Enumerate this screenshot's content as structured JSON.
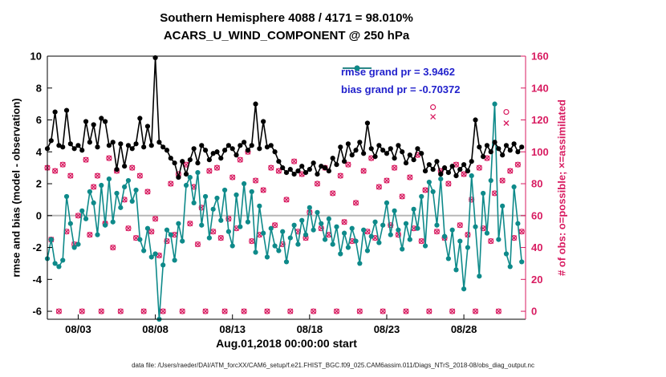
{
  "figure": {
    "title_line1": "Southern Hemisphere 4088 / 4171 = 98.010%",
    "title_line2": "ACARS_U_WIND_COMPONENT @ 250 hPa",
    "xlabel": "Aug.01,2018 00:00:00 start",
    "ylabel_left": "rmse and bias (model - observation)",
    "ylabel_right": "# of obs: o=possible; ×=assimilated",
    "caption": "data file: /Users/raeder/DAI/ATM_forcXX/CAM6_setup/f.e21.FHIST_BGC.f09_025.CAM6assim.011/Diags_NTrS_2018-08/obs_diag_output.nc"
  },
  "legend": {
    "rmse_label": "rmse grand pr = 3.9462",
    "bias_label": "bias grand pr = -0.70372",
    "text_color": "#2222cc"
  },
  "colors": {
    "rmse": "#000000",
    "bias": "#0e8a8a",
    "obs": "#d81b60",
    "zero_line": "#b8b8b8"
  },
  "chart_data": {
    "type": "line",
    "title": "Southern Hemisphere 4088 / 4171 = 98.010%  ACARS_U_WIND_COMPONENT @ 250 hPa",
    "x": {
      "start_days": 0,
      "step_days": 0.25,
      "count": 124
    },
    "x_axis": {
      "min": 0,
      "max": 31,
      "tick_days": [
        2,
        7,
        12,
        17,
        22,
        27
      ],
      "tick_labels": [
        "08/03",
        "08/08",
        "08/13",
        "08/18",
        "08/23",
        "08/28"
      ]
    },
    "y_left": {
      "min": -6.5,
      "max": 10,
      "ticks": [
        -6,
        -4,
        -2,
        0,
        2,
        4,
        6,
        8,
        10
      ]
    },
    "y_right": {
      "min": -5,
      "max": 160,
      "ticks": [
        0,
        20,
        40,
        60,
        80,
        100,
        120,
        140,
        160
      ]
    },
    "grand_pr": {
      "rmse": 3.9462,
      "bias": -0.70372
    },
    "series": [
      {
        "name": "rmse",
        "axis": "left",
        "marker": "dot",
        "values": [
          4.2,
          4.7,
          6.5,
          4.4,
          4.3,
          6.6,
          4.5,
          4.2,
          4.4,
          4.1,
          5.9,
          4.6,
          5.7,
          4.3,
          6.1,
          5.9,
          4.4,
          4.6,
          2.9,
          4.5,
          3.1,
          4.4,
          4.2,
          4.5,
          6.1,
          4.3,
          5.6,
          4.4,
          9.9,
          4.6,
          4.3,
          4.1,
          3.6,
          3.3,
          2.4,
          3.4,
          2.6,
          3.5,
          4.2,
          3.3,
          4.4,
          4.1,
          3.5,
          3.9,
          4.0,
          3.6,
          4.1,
          4.4,
          4.2,
          3.8,
          4.4,
          4.6,
          4.1,
          4.4,
          7.0,
          4.2,
          5.9,
          4.3,
          4.4,
          4.0,
          3.4,
          3.0,
          2.7,
          2.9,
          2.6,
          2.8,
          3.1,
          2.7,
          2.9,
          3.3,
          2.6,
          3.1,
          3.0,
          2.8,
          3.6,
          3.2,
          4.3,
          3.4,
          4.5,
          3.8,
          4.1,
          4.6,
          3.9,
          5.8,
          4.2,
          3.7,
          4.4,
          4.1,
          3.9,
          4.2,
          3.6,
          4.4,
          4.0,
          3.3,
          3.8,
          3.5,
          4.2,
          3.9,
          2.8,
          3.2,
          2.9,
          3.4,
          2.6,
          3.0,
          2.7,
          3.1,
          2.5,
          2.9,
          3.2,
          2.8,
          3.4,
          6.0,
          4.3,
          3.7,
          4.4,
          4.0,
          4.6,
          4.2,
          3.8,
          4.4,
          4.1,
          4.5,
          4.0,
          4.3
        ]
      },
      {
        "name": "bias",
        "axis": "left",
        "marker": "dot",
        "values": [
          -2.7,
          -1.5,
          -3.0,
          -3.2,
          -2.8,
          1.2,
          -0.5,
          -2.0,
          -1.8,
          0.3,
          -0.2,
          1.5,
          0.8,
          -1.2,
          1.9,
          -0.6,
          2.3,
          -0.4,
          1.4,
          0.5,
          1.8,
          2.2,
          0.9,
          1.6,
          -1.5,
          -2.2,
          -0.8,
          -2.6,
          -2.4,
          -6.5,
          -3.1,
          -0.9,
          -1.2,
          -2.8,
          -0.5,
          -1.6,
          1.9,
          2.4,
          0.8,
          2.7,
          -0.6,
          1.2,
          -1.4,
          0.4,
          1.1,
          -0.3,
          1.6,
          -1.0,
          -1.9,
          1.3,
          -0.7,
          2.0,
          -0.4,
          1.5,
          -2.3,
          0.6,
          -1.1,
          -2.6,
          -0.8,
          -1.9,
          -2.2,
          -1.0,
          -2.9,
          -1.4,
          -0.6,
          -1.8,
          -0.3,
          -1.2,
          0.5,
          -0.9,
          0.2,
          -0.5,
          -1.5,
          -0.2,
          -1.8,
          -0.7,
          -2.4,
          -1.1,
          -2.0,
          -0.8,
          -1.6,
          -3.0,
          -0.9,
          -2.2,
          -1.3,
          -0.4,
          -1.7,
          -0.6,
          0.8,
          -1.2,
          0.3,
          -0.9,
          -2.1,
          -0.5,
          -1.5,
          0.4,
          -0.8,
          1.2,
          -1.9,
          2.1,
          1.5,
          -0.6,
          2.3,
          -1.3,
          -2.7,
          -0.9,
          -3.4,
          -1.6,
          -4.6,
          -2.0,
          2.5,
          -0.7,
          -3.8,
          1.4,
          -1.1,
          2.2,
          7.0,
          -1.5,
          0.6,
          -2.4,
          -3.2,
          1.8,
          -0.5,
          -2.9
        ]
      },
      {
        "name": "possible",
        "axis": "right",
        "marker": "circle",
        "values": [
          90,
          45,
          88,
          0,
          92,
          50,
          85,
          42,
          60,
          0,
          95,
          48,
          78,
          85,
          0,
          55,
          96,
          40,
          88,
          0,
          70,
          52,
          90,
          46,
          85,
          0,
          75,
          50,
          58,
          35,
          0,
          44,
          80,
          48,
          86,
          0,
          92,
          55,
          78,
          42,
          65,
          0,
          88,
          50,
          90,
          46,
          0,
          58,
          84,
          52,
          95,
          0,
          100,
          44,
          82,
          48,
          76,
          0,
          90,
          54,
          88,
          42,
          70,
          0,
          94,
          50,
          86,
          46,
          62,
          0,
          80,
          52,
          90,
          48,
          74,
          0,
          85,
          56,
          92,
          44,
          68,
          0,
          88,
          50,
          96,
          46,
          78,
          0,
          82,
          54,
          90,
          48,
          72,
          0,
          84,
          52,
          98,
          44,
          76,
          0,
          128,
          50,
          88,
          46,
          80,
          0,
          92,
          54,
          86,
          48,
          70,
          0,
          90,
          52,
          96,
          44,
          74,
          0,
          82,
          125,
          88,
          46,
          92,
          50
        ]
      },
      {
        "name": "assimilated",
        "axis": "right",
        "marker": "x",
        "values": [
          90,
          45,
          88,
          0,
          92,
          50,
          85,
          42,
          60,
          0,
          95,
          48,
          78,
          85,
          0,
          55,
          96,
          40,
          88,
          0,
          70,
          52,
          90,
          46,
          85,
          0,
          75,
          50,
          58,
          35,
          0,
          44,
          80,
          48,
          86,
          0,
          92,
          55,
          78,
          42,
          65,
          0,
          88,
          50,
          90,
          46,
          0,
          58,
          84,
          52,
          95,
          0,
          100,
          44,
          82,
          48,
          76,
          0,
          90,
          54,
          88,
          42,
          70,
          0,
          94,
          50,
          86,
          46,
          62,
          0,
          80,
          52,
          90,
          48,
          74,
          0,
          85,
          56,
          92,
          44,
          68,
          0,
          88,
          50,
          96,
          46,
          78,
          0,
          82,
          54,
          90,
          48,
          72,
          0,
          84,
          52,
          98,
          44,
          76,
          0,
          122,
          50,
          88,
          46,
          80,
          0,
          92,
          54,
          86,
          48,
          70,
          0,
          90,
          52,
          96,
          44,
          74,
          0,
          82,
          118,
          88,
          46,
          92,
          50
        ]
      }
    ]
  }
}
